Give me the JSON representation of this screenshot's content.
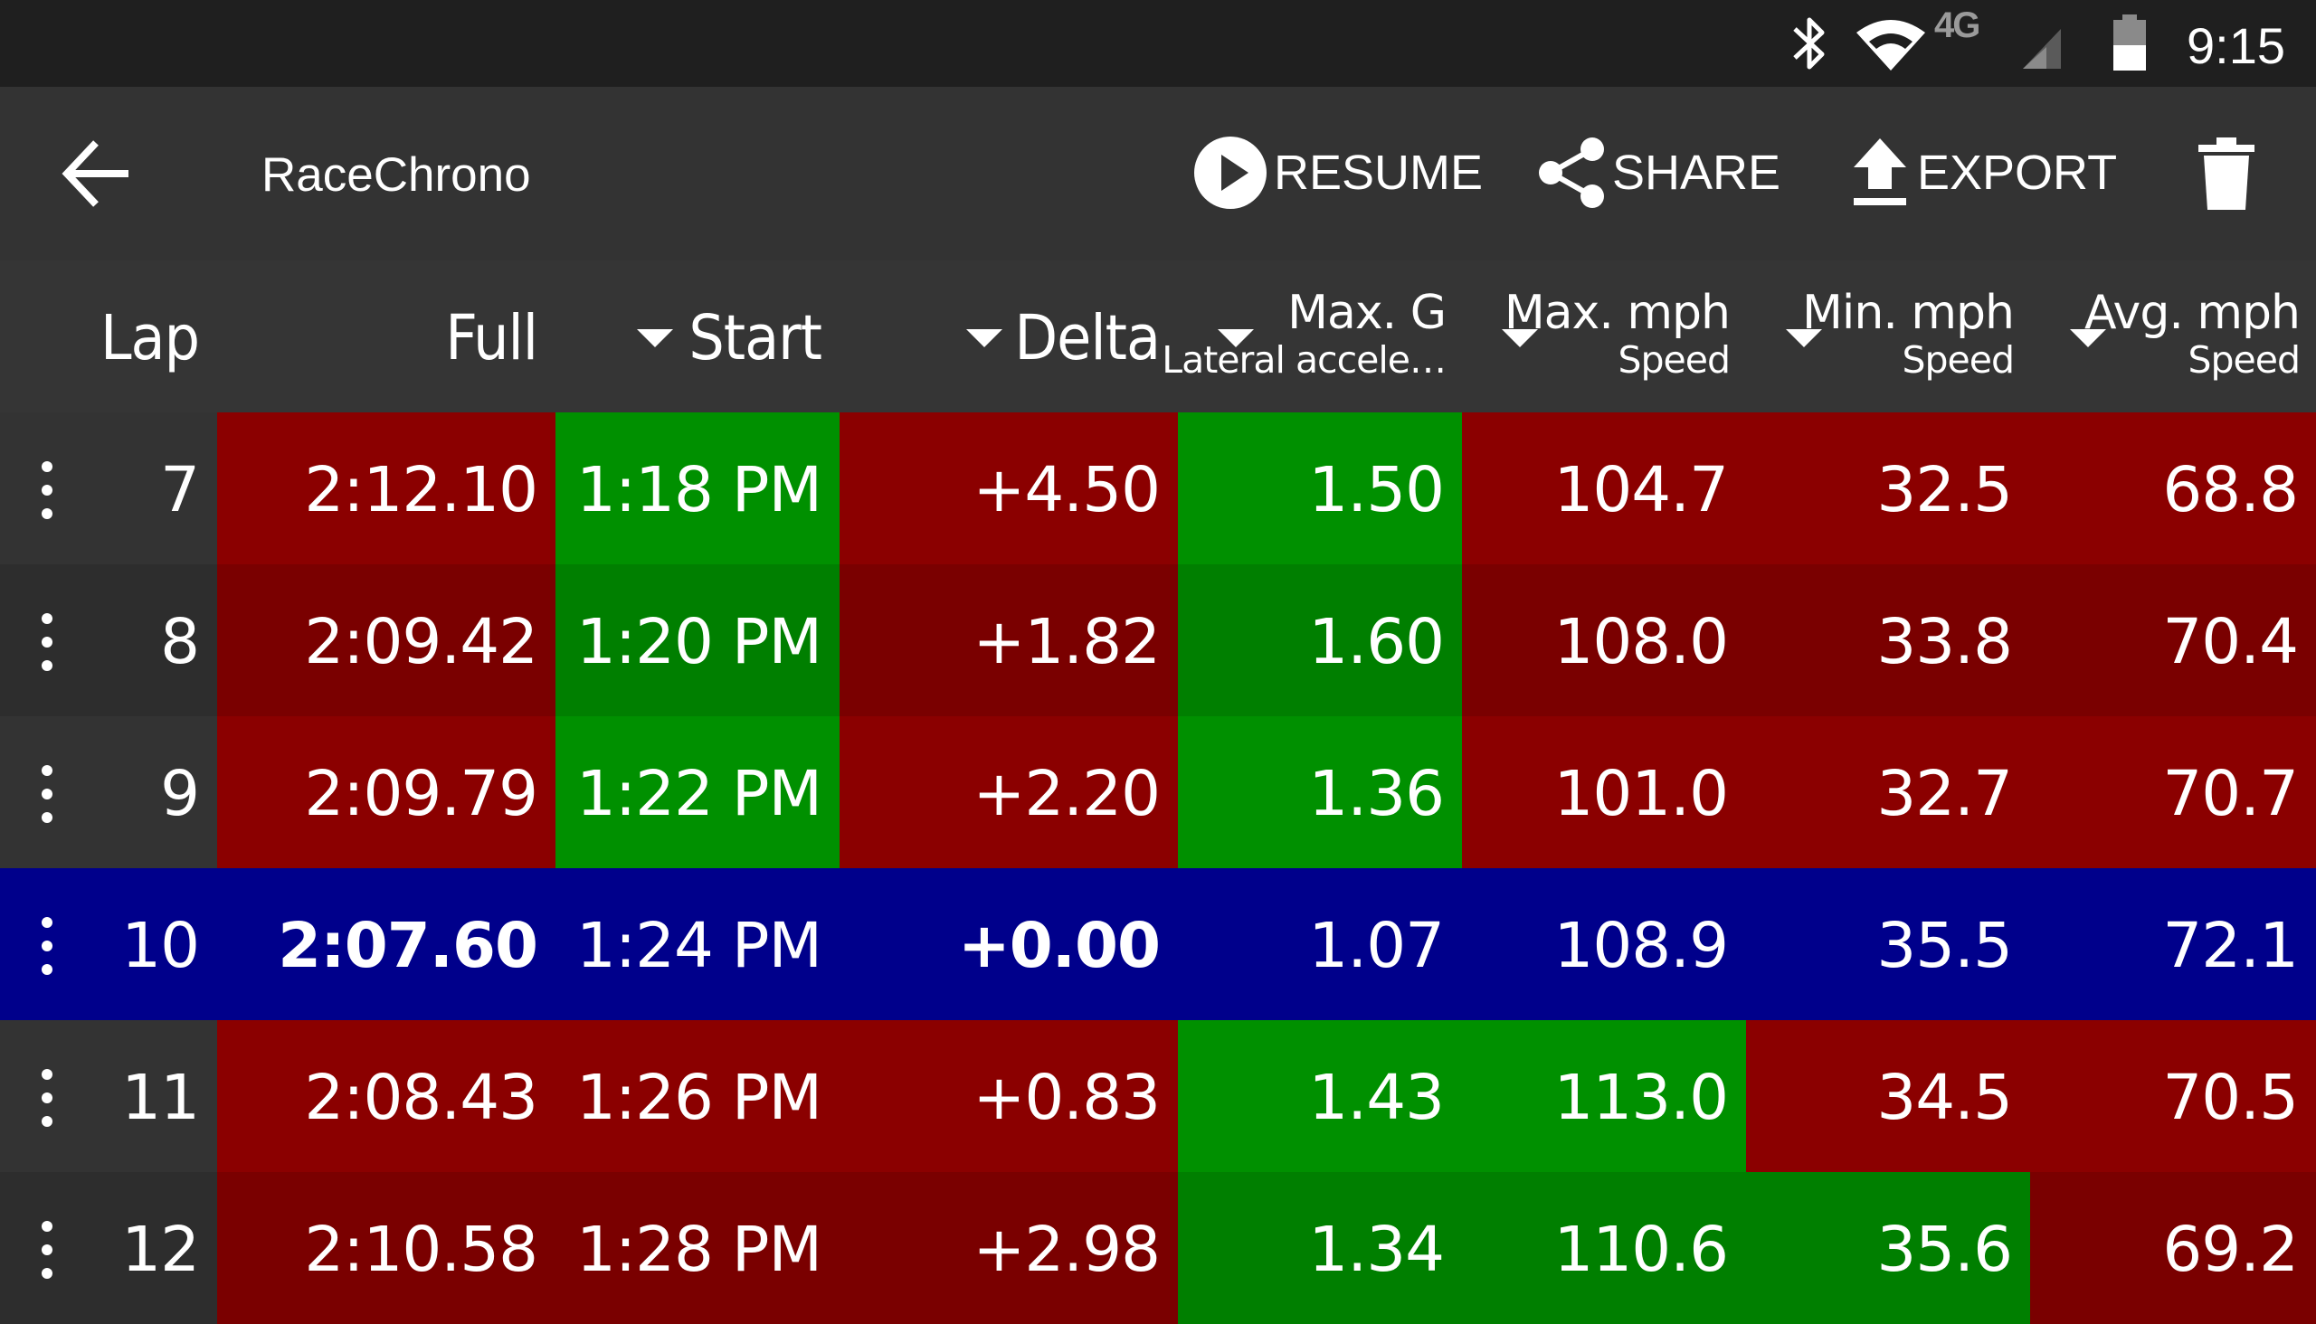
{
  "status_bar": {
    "time": "9:15",
    "icons": [
      "bluetooth-icon",
      "wifi-icon",
      "4g-lte-icon",
      "signal-icon",
      "battery-icon"
    ],
    "network_label": "4G"
  },
  "toolbar": {
    "back_icon": "arrow-left-icon",
    "title": "RaceChrono",
    "resume_label": "RESUME",
    "share_label": "SHARE",
    "export_label": "EXPORT",
    "delete_icon": "trash-icon"
  },
  "columns": [
    {
      "key": "lap",
      "label": "Lap",
      "sublabel": ""
    },
    {
      "key": "full",
      "label": "Full",
      "sublabel": ""
    },
    {
      "key": "start",
      "label": "Start",
      "sublabel": ""
    },
    {
      "key": "delta",
      "label": "Delta",
      "sublabel": ""
    },
    {
      "key": "max_g",
      "label": "Max. G",
      "sublabel": "Lateral accele…"
    },
    {
      "key": "max_mph",
      "label": "Max. mph",
      "sublabel": "Speed"
    },
    {
      "key": "min_mph",
      "label": "Min. mph",
      "sublabel": "Speed"
    },
    {
      "key": "avg_mph",
      "label": "Avg. mph",
      "sublabel": "Speed"
    }
  ],
  "colors": {
    "red": "#8b0000",
    "red_dark": "#7a0000",
    "green": "#009000",
    "green_dark": "#007f00",
    "selected": "#00008b",
    "lap_bg": "#333333",
    "lap_bg_alt": "#2d2d2d"
  },
  "rows": [
    {
      "lap": "7",
      "full": "2:12.10",
      "start": "1:18 PM",
      "delta": "+4.50",
      "max_g": "1.50",
      "max_mph": "104.7",
      "min_mph": "32.5",
      "avg_mph": "68.8",
      "colors": [
        "red",
        "green",
        "red",
        "green",
        "red",
        "red",
        "red"
      ],
      "selected": false
    },
    {
      "lap": "8",
      "full": "2:09.42",
      "start": "1:20 PM",
      "delta": "+1.82",
      "max_g": "1.60",
      "max_mph": "108.0",
      "min_mph": "33.8",
      "avg_mph": "70.4",
      "colors": [
        "red",
        "green",
        "red",
        "green",
        "red",
        "red",
        "red"
      ],
      "selected": false
    },
    {
      "lap": "9",
      "full": "2:09.79",
      "start": "1:22 PM",
      "delta": "+2.20",
      "max_g": "1.36",
      "max_mph": "101.0",
      "min_mph": "32.7",
      "avg_mph": "70.7",
      "colors": [
        "red",
        "green",
        "red",
        "green",
        "red",
        "red",
        "red"
      ],
      "selected": false
    },
    {
      "lap": "10",
      "full": "2:07.60",
      "start": "1:24 PM",
      "delta": "+0.00",
      "max_g": "1.07",
      "max_mph": "108.9",
      "min_mph": "35.5",
      "avg_mph": "72.1",
      "colors": [
        "selected",
        "selected",
        "selected",
        "selected",
        "selected",
        "selected",
        "selected"
      ],
      "selected": true
    },
    {
      "lap": "11",
      "full": "2:08.43",
      "start": "1:26 PM",
      "delta": "+0.83",
      "max_g": "1.43",
      "max_mph": "113.0",
      "min_mph": "34.5",
      "avg_mph": "70.5",
      "colors": [
        "red",
        "red",
        "red",
        "green",
        "green",
        "red",
        "red"
      ],
      "selected": false
    },
    {
      "lap": "12",
      "full": "2:10.58",
      "start": "1:28 PM",
      "delta": "+2.98",
      "max_g": "1.34",
      "max_mph": "110.6",
      "min_mph": "35.6",
      "avg_mph": "69.2",
      "colors": [
        "red",
        "red",
        "red",
        "green",
        "green",
        "green",
        "red"
      ],
      "selected": false
    }
  ]
}
